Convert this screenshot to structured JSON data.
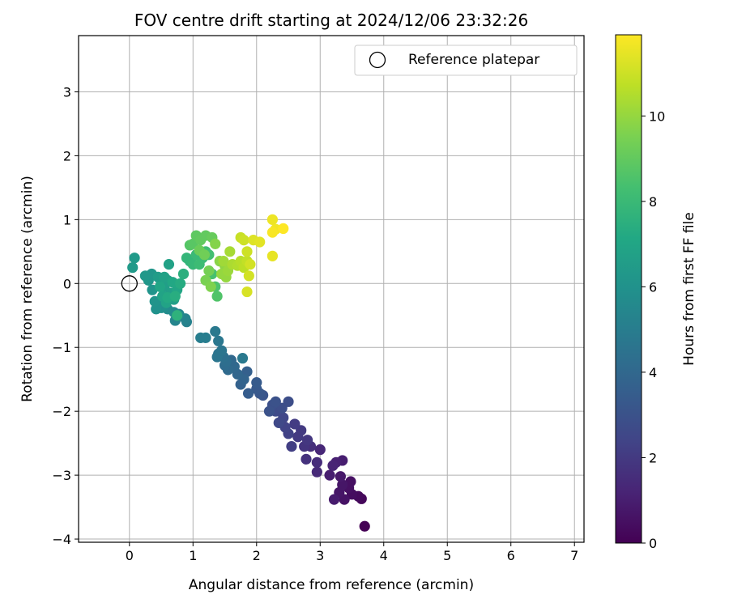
{
  "chart_data": {
    "type": "scatter",
    "title": "FOV centre drift starting at 2024/12/06 23:32:26",
    "xlabel": "Angular distance from reference (arcmin)",
    "ylabel": "Rotation from reference (arcmin)",
    "xlim": [
      -0.8,
      7.15
    ],
    "ylim": [
      -4.05,
      3.88
    ],
    "xticks": [
      0,
      1,
      2,
      3,
      4,
      5,
      6,
      7
    ],
    "yticks": [
      -4,
      -3,
      -2,
      -1,
      0,
      1,
      2,
      3
    ],
    "grid": true,
    "legend": {
      "location": "upper right",
      "entries": [
        "Reference platepar"
      ]
    },
    "colorbar": {
      "label": "Hours from first FF file",
      "colormap": "viridis",
      "range": [
        0,
        11.9
      ],
      "ticks": [
        0,
        2,
        4,
        6,
        8,
        10
      ]
    },
    "reference_point": {
      "x": 0,
      "y": 0
    },
    "points": [
      {
        "x": 3.7,
        "y": -3.8,
        "h": 0.0
      },
      {
        "x": 3.65,
        "y": -3.37,
        "h": 0.2
      },
      {
        "x": 3.6,
        "y": -3.33,
        "h": 0.3
      },
      {
        "x": 3.5,
        "y": -3.3,
        "h": 0.4
      },
      {
        "x": 3.45,
        "y": -3.2,
        "h": 0.5
      },
      {
        "x": 3.48,
        "y": -3.1,
        "h": 0.5
      },
      {
        "x": 3.38,
        "y": -3.38,
        "h": 0.6
      },
      {
        "x": 3.3,
        "y": -3.27,
        "h": 0.7
      },
      {
        "x": 3.35,
        "y": -3.15,
        "h": 0.7
      },
      {
        "x": 3.32,
        "y": -3.02,
        "h": 0.8
      },
      {
        "x": 3.22,
        "y": -3.38,
        "h": 0.9
      },
      {
        "x": 3.15,
        "y": -3.0,
        "h": 1.0
      },
      {
        "x": 3.35,
        "y": -2.77,
        "h": 1.0
      },
      {
        "x": 3.25,
        "y": -2.8,
        "h": 1.1
      },
      {
        "x": 3.2,
        "y": -2.85,
        "h": 1.2
      },
      {
        "x": 3.0,
        "y": -2.6,
        "h": 1.3
      },
      {
        "x": 2.95,
        "y": -2.95,
        "h": 1.4
      },
      {
        "x": 2.95,
        "y": -2.8,
        "h": 1.5
      },
      {
        "x": 2.85,
        "y": -2.55,
        "h": 1.6
      },
      {
        "x": 2.78,
        "y": -2.75,
        "h": 1.7
      },
      {
        "x": 2.75,
        "y": -2.55,
        "h": 1.8
      },
      {
        "x": 2.8,
        "y": -2.45,
        "h": 1.9
      },
      {
        "x": 2.7,
        "y": -2.3,
        "h": 2.0
      },
      {
        "x": 2.65,
        "y": -2.4,
        "h": 2.0
      },
      {
        "x": 2.6,
        "y": -2.2,
        "h": 2.1
      },
      {
        "x": 2.55,
        "y": -2.55,
        "h": 2.2
      },
      {
        "x": 2.5,
        "y": -2.35,
        "h": 2.3
      },
      {
        "x": 2.45,
        "y": -2.25,
        "h": 2.4
      },
      {
        "x": 2.42,
        "y": -2.1,
        "h": 2.5
      },
      {
        "x": 2.35,
        "y": -2.18,
        "h": 2.6
      },
      {
        "x": 2.3,
        "y": -2.0,
        "h": 2.7
      },
      {
        "x": 2.4,
        "y": -1.95,
        "h": 2.8
      },
      {
        "x": 2.5,
        "y": -1.85,
        "h": 2.8
      },
      {
        "x": 2.25,
        "y": -1.9,
        "h": 2.9
      },
      {
        "x": 2.2,
        "y": -2.0,
        "h": 3.0
      },
      {
        "x": 2.3,
        "y": -1.85,
        "h": 3.0
      },
      {
        "x": 2.1,
        "y": -1.75,
        "h": 3.1
      },
      {
        "x": 2.05,
        "y": -1.72,
        "h": 3.2
      },
      {
        "x": 2.0,
        "y": -1.65,
        "h": 3.3
      },
      {
        "x": 2.0,
        "y": -1.55,
        "h": 3.4
      },
      {
        "x": 1.87,
        "y": -1.72,
        "h": 3.5
      },
      {
        "x": 1.85,
        "y": -1.38,
        "h": 3.6
      },
      {
        "x": 1.75,
        "y": -1.58,
        "h": 3.7
      },
      {
        "x": 1.8,
        "y": -1.5,
        "h": 3.8
      },
      {
        "x": 1.7,
        "y": -1.42,
        "h": 3.9
      },
      {
        "x": 1.65,
        "y": -1.3,
        "h": 4.0
      },
      {
        "x": 1.6,
        "y": -1.2,
        "h": 4.0
      },
      {
        "x": 1.55,
        "y": -1.35,
        "h": 4.1
      },
      {
        "x": 1.5,
        "y": -1.28,
        "h": 4.2
      },
      {
        "x": 1.52,
        "y": -1.22,
        "h": 4.3
      },
      {
        "x": 1.48,
        "y": -1.15,
        "h": 4.4
      },
      {
        "x": 1.4,
        "y": -1.1,
        "h": 4.5
      },
      {
        "x": 1.38,
        "y": -1.15,
        "h": 4.6
      },
      {
        "x": 1.45,
        "y": -1.05,
        "h": 4.6
      },
      {
        "x": 1.4,
        "y": -0.9,
        "h": 4.7
      },
      {
        "x": 1.35,
        "y": -0.75,
        "h": 4.8
      },
      {
        "x": 1.78,
        "y": -1.17,
        "h": 4.8
      },
      {
        "x": 1.12,
        "y": -0.85,
        "h": 5.0
      },
      {
        "x": 1.2,
        "y": -0.85,
        "h": 5.0
      },
      {
        "x": 0.9,
        "y": -0.6,
        "h": 5.2
      },
      {
        "x": 0.88,
        "y": -0.55,
        "h": 5.3
      },
      {
        "x": 0.72,
        "y": -0.58,
        "h": 5.4
      },
      {
        "x": 0.78,
        "y": -0.48,
        "h": 5.5
      },
      {
        "x": 0.7,
        "y": -0.45,
        "h": 5.6
      },
      {
        "x": 0.6,
        "y": -0.4,
        "h": 5.7
      },
      {
        "x": 0.55,
        "y": -0.35,
        "h": 5.8
      },
      {
        "x": 0.5,
        "y": -0.38,
        "h": 5.9
      },
      {
        "x": 0.45,
        "y": -0.3,
        "h": 6.0
      },
      {
        "x": 0.42,
        "y": -0.4,
        "h": 6.0
      },
      {
        "x": 0.4,
        "y": -0.28,
        "h": 6.1
      },
      {
        "x": 0.36,
        "y": -0.1,
        "h": 6.1
      },
      {
        "x": 0.3,
        "y": 0.05,
        "h": 6.2
      },
      {
        "x": 0.35,
        "y": 0.15,
        "h": 6.2
      },
      {
        "x": 0.25,
        "y": 0.12,
        "h": 6.3
      },
      {
        "x": 0.05,
        "y": 0.25,
        "h": 6.4
      },
      {
        "x": 0.08,
        "y": 0.4,
        "h": 6.4
      },
      {
        "x": 0.45,
        "y": 0.1,
        "h": 6.5
      },
      {
        "x": 0.5,
        "y": 0.0,
        "h": 6.5
      },
      {
        "x": 0.55,
        "y": -0.05,
        "h": 6.6
      },
      {
        "x": 0.6,
        "y": 0.05,
        "h": 6.6
      },
      {
        "x": 0.65,
        "y": -0.15,
        "h": 6.7
      },
      {
        "x": 0.7,
        "y": -0.25,
        "h": 6.7
      },
      {
        "x": 0.62,
        "y": 0.3,
        "h": 6.8
      },
      {
        "x": 0.55,
        "y": 0.1,
        "h": 6.8
      },
      {
        "x": 0.52,
        "y": -0.2,
        "h": 6.9
      },
      {
        "x": 0.58,
        "y": -0.3,
        "h": 6.9
      },
      {
        "x": 0.48,
        "y": -0.05,
        "h": 7.0
      },
      {
        "x": 0.75,
        "y": -0.1,
        "h": 7.0
      },
      {
        "x": 0.68,
        "y": 0.02,
        "h": 7.1
      },
      {
        "x": 0.6,
        "y": -0.22,
        "h": 7.2
      },
      {
        "x": 0.8,
        "y": 0.0,
        "h": 7.3
      },
      {
        "x": 0.72,
        "y": -0.2,
        "h": 7.4
      },
      {
        "x": 0.85,
        "y": 0.15,
        "h": 7.5
      },
      {
        "x": 0.75,
        "y": -0.5,
        "h": 7.6
      },
      {
        "x": 0.95,
        "y": 0.35,
        "h": 7.7
      },
      {
        "x": 0.9,
        "y": 0.4,
        "h": 7.8
      },
      {
        "x": 1.0,
        "y": 0.3,
        "h": 7.9
      },
      {
        "x": 1.05,
        "y": 0.45,
        "h": 8.0
      },
      {
        "x": 1.15,
        "y": 0.4,
        "h": 8.0
      },
      {
        "x": 1.1,
        "y": 0.3,
        "h": 8.1
      },
      {
        "x": 1.2,
        "y": 0.5,
        "h": 8.2
      },
      {
        "x": 1.25,
        "y": 0.45,
        "h": 8.3
      },
      {
        "x": 1.3,
        "y": 0.15,
        "h": 8.4
      },
      {
        "x": 1.35,
        "y": -0.05,
        "h": 8.5
      },
      {
        "x": 1.38,
        "y": -0.2,
        "h": 8.6
      },
      {
        "x": 0.95,
        "y": 0.6,
        "h": 8.7
      },
      {
        "x": 1.0,
        "y": 0.62,
        "h": 8.8
      },
      {
        "x": 1.05,
        "y": 0.75,
        "h": 8.9
      },
      {
        "x": 1.12,
        "y": 0.68,
        "h": 9.0
      },
      {
        "x": 1.2,
        "y": 0.75,
        "h": 9.0
      },
      {
        "x": 1.3,
        "y": 0.72,
        "h": 9.1
      },
      {
        "x": 1.1,
        "y": 0.52,
        "h": 9.2
      },
      {
        "x": 1.18,
        "y": 0.45,
        "h": 9.3
      },
      {
        "x": 1.25,
        "y": 0.2,
        "h": 9.4
      },
      {
        "x": 1.2,
        "y": 0.05,
        "h": 9.5
      },
      {
        "x": 1.28,
        "y": -0.05,
        "h": 9.6
      },
      {
        "x": 1.35,
        "y": 0.62,
        "h": 9.7
      },
      {
        "x": 1.42,
        "y": 0.35,
        "h": 9.8
      },
      {
        "x": 1.5,
        "y": 0.28,
        "h": 9.9
      },
      {
        "x": 1.45,
        "y": 0.15,
        "h": 10.0
      },
      {
        "x": 1.52,
        "y": 0.1,
        "h": 10.0
      },
      {
        "x": 1.55,
        "y": 0.2,
        "h": 10.1
      },
      {
        "x": 1.48,
        "y": 0.35,
        "h": 10.2
      },
      {
        "x": 1.58,
        "y": 0.5,
        "h": 10.3
      },
      {
        "x": 1.62,
        "y": 0.3,
        "h": 10.4
      },
      {
        "x": 1.7,
        "y": 0.28,
        "h": 10.5
      },
      {
        "x": 1.75,
        "y": 0.35,
        "h": 10.6
      },
      {
        "x": 1.8,
        "y": 0.25,
        "h": 10.7
      },
      {
        "x": 1.85,
        "y": 0.35,
        "h": 10.8
      },
      {
        "x": 1.75,
        "y": 0.72,
        "h": 10.9
      },
      {
        "x": 1.8,
        "y": 0.68,
        "h": 11.0
      },
      {
        "x": 1.85,
        "y": 0.5,
        "h": 11.0
      },
      {
        "x": 1.9,
        "y": 0.3,
        "h": 11.1
      },
      {
        "x": 1.88,
        "y": 0.12,
        "h": 11.1
      },
      {
        "x": 1.85,
        "y": -0.13,
        "h": 11.2
      },
      {
        "x": 1.95,
        "y": 0.68,
        "h": 11.3
      },
      {
        "x": 2.05,
        "y": 0.65,
        "h": 11.4
      },
      {
        "x": 2.25,
        "y": 0.43,
        "h": 11.5
      },
      {
        "x": 2.25,
        "y": 1.0,
        "h": 11.6
      },
      {
        "x": 2.3,
        "y": 0.85,
        "h": 11.7
      },
      {
        "x": 2.25,
        "y": 0.8,
        "h": 11.8
      },
      {
        "x": 2.42,
        "y": 0.86,
        "h": 11.9
      }
    ]
  }
}
